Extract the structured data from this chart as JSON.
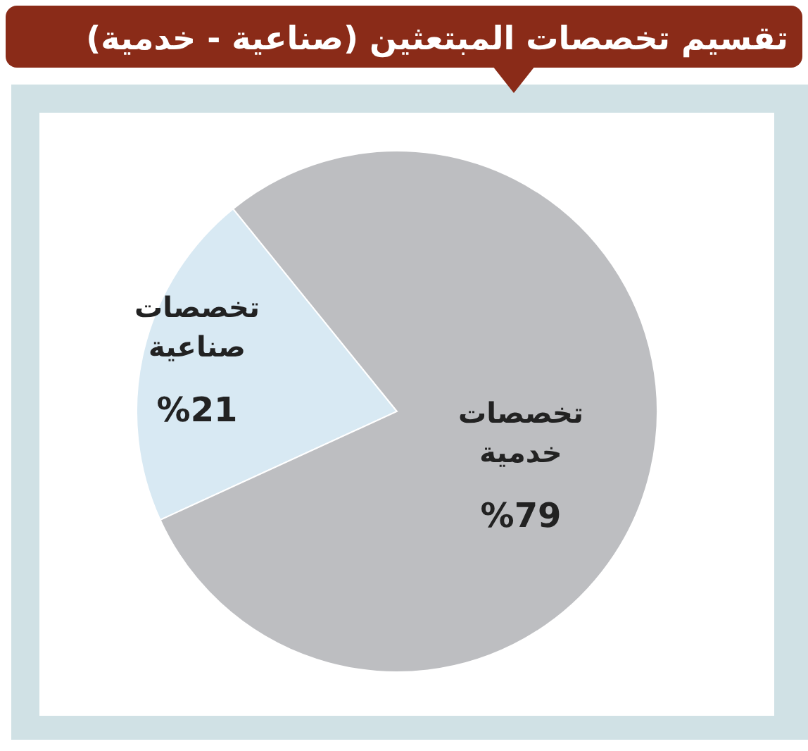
{
  "chart_data": {
    "type": "pie",
    "title": "تقسيم تخصصات المبتعثين (صناعية - خدمية)",
    "categories": [
      "تخصصات صناعية",
      "تخصصات خدمية"
    ],
    "values": [
      21,
      79
    ],
    "colors": [
      "#d8e9f3",
      "#bdbec1"
    ],
    "value_labels": [
      "%21",
      "%79"
    ],
    "legend": false
  }
}
